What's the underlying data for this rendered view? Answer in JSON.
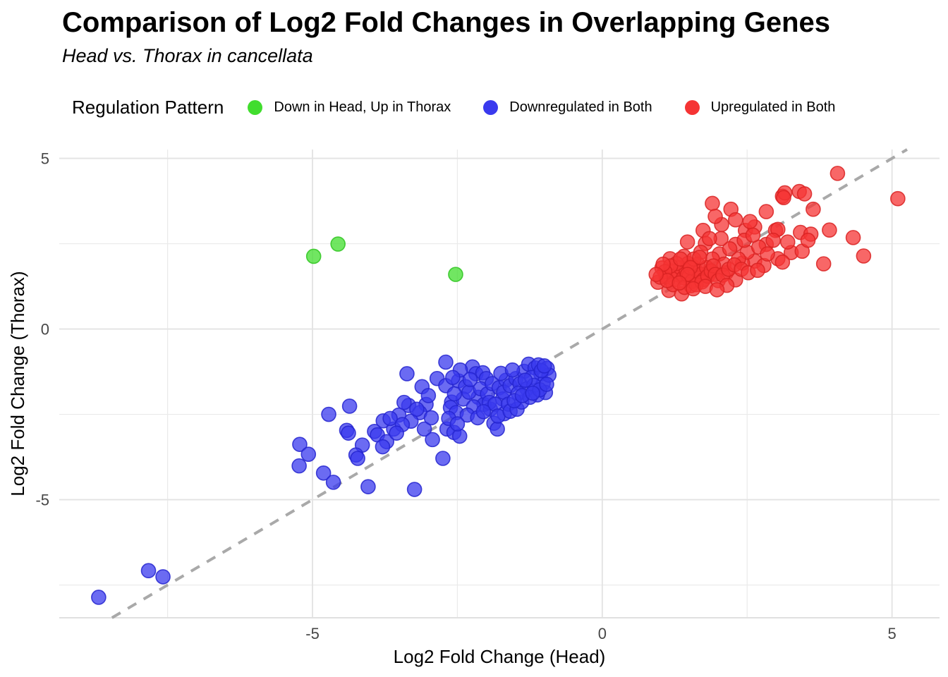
{
  "header": {
    "title": "Comparison of Log2 Fold Changes in Overlapping Genes",
    "subtitle": "Head vs. Thorax in cancellata"
  },
  "legend": {
    "title": "Regulation Pattern",
    "items": [
      {
        "label": "Down in Head, Up in Thorax",
        "color": "#41dd2e"
      },
      {
        "label": "Downregulated in Both",
        "color": "#3a3aee"
      },
      {
        "label": "Upregulated in Both",
        "color": "#f53434"
      }
    ]
  },
  "colors": {
    "grid_major": "#e3e3e3",
    "grid_minor": "#eaeaea",
    "axis_line": "#e0e0e0",
    "tick_label": "#474747",
    "axis_title": "#000000",
    "reference_line": "#a9a9a9"
  },
  "chart_data": {
    "type": "scatter",
    "title": "Comparison of Log2 Fold Changes in Overlapping Genes",
    "subtitle": "Head vs. Thorax in cancellata",
    "xlabel": "Log2 Fold Change (Head)",
    "ylabel": "Log2 Fold Change (Thorax)",
    "xlim": [
      -9.37,
      5.82
    ],
    "ylim": [
      -8.46,
      5.26
    ],
    "xticks": [
      -5,
      0,
      5
    ],
    "yticks": [
      -5,
      0,
      5
    ],
    "xticks_minor": [
      -7.5,
      -2.5,
      2.5
    ],
    "yticks_minor": [
      -7.5,
      -2.5,
      2.5
    ],
    "grid": true,
    "legend_position": "top",
    "reference_line": {
      "style": "dashed",
      "slope": 1,
      "intercept": 0,
      "label": "y = x identity"
    },
    "series": [
      {
        "name": "Down in Head, Up in Thorax",
        "color": "#41dd2e",
        "stroke": "#2ec41e",
        "points": [
          [
            -4.98,
            2.13
          ],
          [
            -4.56,
            2.49
          ],
          [
            -2.53,
            1.6
          ]
        ]
      },
      {
        "name": "Downregulated in Both",
        "color": "#3a3aee",
        "stroke": "#2424cf",
        "points": [
          [
            -8.69,
            -7.86
          ],
          [
            -7.83,
            -7.08
          ],
          [
            -7.58,
            -7.26
          ],
          [
            -5.22,
            -3.38
          ],
          [
            -5.07,
            -3.67
          ],
          [
            -5.23,
            -4.01
          ],
          [
            -4.81,
            -4.22
          ],
          [
            -4.64,
            -4.49
          ],
          [
            -4.72,
            -2.5
          ],
          [
            -4.36,
            -2.26
          ],
          [
            -4.41,
            -2.97
          ],
          [
            -4.38,
            -3.05
          ],
          [
            -4.14,
            -3.4
          ],
          [
            -4.25,
            -3.69
          ],
          [
            -4.22,
            -3.79
          ],
          [
            -4.04,
            -4.62
          ],
          [
            -3.93,
            -3.0
          ],
          [
            -3.88,
            -3.1
          ],
          [
            -3.78,
            -2.69
          ],
          [
            -3.72,
            -3.3
          ],
          [
            -3.79,
            -3.45
          ],
          [
            -3.6,
            -2.93
          ],
          [
            -3.37,
            -1.31
          ],
          [
            -3.34,
            -2.24
          ],
          [
            -3.11,
            -1.69
          ],
          [
            -3.04,
            -2.21
          ],
          [
            -3.15,
            -2.45
          ],
          [
            -3.51,
            -2.52
          ],
          [
            -3.66,
            -2.62
          ],
          [
            -3.24,
            -4.7
          ],
          [
            -3.07,
            -2.93
          ],
          [
            -2.93,
            -3.24
          ],
          [
            -2.85,
            -1.45
          ],
          [
            -3.3,
            -2.7
          ],
          [
            -3.45,
            -2.8
          ],
          [
            -3.2,
            -2.35
          ],
          [
            -2.95,
            -2.6
          ],
          [
            -3.55,
            -3.05
          ],
          [
            -3.0,
            -1.95
          ],
          [
            -3.42,
            -2.15
          ],
          [
            -2.75,
            -3.79
          ],
          [
            -2.7,
            -0.97
          ],
          [
            -2.68,
            -2.93
          ],
          [
            -2.56,
            -3.03
          ],
          [
            -2.46,
            -3.14
          ],
          [
            -2.6,
            -2.14
          ],
          [
            -2.7,
            -1.66
          ],
          [
            -2.48,
            -1.52
          ],
          [
            -2.36,
            -1.69
          ],
          [
            -2.24,
            -1.11
          ],
          [
            -2.18,
            -1.31
          ],
          [
            -2.06,
            -1.28
          ],
          [
            -2.0,
            -1.45
          ],
          [
            -2.14,
            -2.0
          ],
          [
            -2.04,
            -2.21
          ],
          [
            -1.93,
            -2.35
          ],
          [
            -1.87,
            -2.76
          ],
          [
            -1.81,
            -2.93
          ],
          [
            -1.69,
            -2.48
          ],
          [
            -2.62,
            -2.3
          ],
          [
            -2.52,
            -2.45
          ],
          [
            -2.4,
            -2.05
          ],
          [
            -2.3,
            -1.85
          ],
          [
            -2.22,
            -2.28
          ],
          [
            -2.1,
            -1.75
          ],
          [
            -1.98,
            -1.9
          ],
          [
            -1.9,
            -1.6
          ],
          [
            -1.78,
            -1.72
          ],
          [
            -1.72,
            -2.05
          ],
          [
            -1.66,
            -1.5
          ],
          [
            -2.55,
            -1.9
          ],
          [
            -2.33,
            -2.52
          ],
          [
            -2.15,
            -2.6
          ],
          [
            -1.95,
            -2.15
          ],
          [
            -1.75,
            -1.3
          ],
          [
            -2.45,
            -1.2
          ],
          [
            -2.28,
            -1.48
          ],
          [
            -2.65,
            -2.62
          ],
          [
            -1.85,
            -2.2
          ],
          [
            -2.05,
            -2.42
          ],
          [
            -1.7,
            -1.85
          ],
          [
            -2.5,
            -2.78
          ],
          [
            -1.62,
            -2.2
          ],
          [
            -1.8,
            -2.55
          ],
          [
            -2.58,
            -1.42
          ],
          [
            -1.59,
            -1.66
          ],
          [
            -1.49,
            -1.45
          ],
          [
            -1.35,
            -1.24
          ],
          [
            -1.27,
            -1.03
          ],
          [
            -1.16,
            -1.14
          ],
          [
            -1.06,
            -1.31
          ],
          [
            -1.02,
            -1.59
          ],
          [
            -0.98,
            -1.86
          ],
          [
            -1.12,
            -1.93
          ],
          [
            -1.59,
            -2.41
          ],
          [
            -1.47,
            -2.35
          ],
          [
            -1.39,
            -2.14
          ],
          [
            -1.55,
            -1.2
          ],
          [
            -1.42,
            -1.6
          ],
          [
            -1.3,
            -1.75
          ],
          [
            -1.22,
            -1.42
          ],
          [
            -1.1,
            -1.05
          ],
          [
            -0.95,
            -1.15
          ],
          [
            -0.92,
            -1.35
          ],
          [
            -1.05,
            -1.22
          ],
          [
            -1.18,
            -1.65
          ],
          [
            -1.33,
            -1.5
          ],
          [
            -1.45,
            -1.88
          ],
          [
            -1.25,
            -2.0
          ],
          [
            -1.08,
            -1.78
          ],
          [
            -0.96,
            -1.62
          ],
          [
            -1.52,
            -2.1
          ],
          [
            -1.38,
            -1.95
          ],
          [
            -1.2,
            -1.88
          ],
          [
            -1.0,
            -1.08
          ]
        ]
      },
      {
        "name": "Upregulated in Both",
        "color": "#f53434",
        "stroke": "#d92222",
        "points": [
          [
            1.9,
            3.68
          ],
          [
            2.22,
            3.51
          ],
          [
            2.83,
            3.44
          ],
          [
            3.11,
            3.89
          ],
          [
            3.15,
            3.99
          ],
          [
            4.06,
            4.56
          ],
          [
            3.4,
            4.03
          ],
          [
            3.49,
            3.96
          ],
          [
            3.13,
            3.85
          ],
          [
            3.64,
            3.51
          ],
          [
            5.1,
            3.82
          ],
          [
            2.06,
            3.06
          ],
          [
            1.74,
            2.89
          ],
          [
            2.47,
            2.89
          ],
          [
            2.63,
            2.99
          ],
          [
            2.99,
            2.89
          ],
          [
            3.03,
            2.92
          ],
          [
            3.42,
            2.83
          ],
          [
            3.6,
            2.78
          ],
          [
            3.92,
            2.9
          ],
          [
            4.33,
            2.68
          ],
          [
            2.3,
            3.2
          ],
          [
            2.55,
            3.15
          ],
          [
            1.95,
            3.3
          ],
          [
            1.47,
            2.55
          ],
          [
            1.78,
            2.51
          ],
          [
            2.3,
            2.48
          ],
          [
            2.02,
            2.2
          ],
          [
            1.41,
            2.13
          ],
          [
            1.17,
            2.06
          ],
          [
            2.83,
            2.48
          ],
          [
            2.63,
            1.99
          ],
          [
            2.42,
            1.93
          ],
          [
            2.79,
            1.86
          ],
          [
            3.03,
            2.06
          ],
          [
            3.26,
            2.24
          ],
          [
            3.45,
            2.28
          ],
          [
            4.51,
            2.14
          ],
          [
            2.14,
            1.65
          ],
          [
            1.86,
            1.72
          ],
          [
            1.63,
            1.58
          ],
          [
            2.3,
            1.44
          ],
          [
            3.11,
            1.96
          ],
          [
            3.82,
            1.91
          ],
          [
            2.2,
            2.35
          ],
          [
            2.5,
            2.25
          ],
          [
            2.7,
            2.4
          ],
          [
            1.9,
            2.05
          ],
          [
            2.1,
            1.9
          ],
          [
            1.55,
            1.85
          ],
          [
            1.7,
            2.25
          ],
          [
            2.45,
            2.6
          ],
          [
            2.85,
            2.2
          ],
          [
            2.95,
            2.6
          ],
          [
            3.2,
            2.55
          ],
          [
            3.55,
            2.6
          ],
          [
            2.6,
            2.75
          ],
          [
            2.35,
            2.05
          ],
          [
            2.05,
            2.65
          ],
          [
            1.85,
            2.65
          ],
          [
            1.03,
            1.79
          ],
          [
            0.96,
            1.37
          ],
          [
            1.15,
            1.13
          ],
          [
            1.37,
            1.03
          ],
          [
            1.53,
            1.27
          ],
          [
            1.1,
            1.55
          ],
          [
            1.2,
            1.7
          ],
          [
            1.25,
            1.45
          ],
          [
            1.3,
            1.6
          ],
          [
            1.35,
            1.8
          ],
          [
            1.4,
            1.5
          ],
          [
            1.45,
            1.7
          ],
          [
            1.5,
            1.55
          ],
          [
            1.55,
            1.4
          ],
          [
            1.6,
            1.75
          ],
          [
            1.65,
            1.9
          ],
          [
            1.7,
            1.6
          ],
          [
            1.75,
            1.45
          ],
          [
            1.8,
            1.8
          ],
          [
            1.48,
            1.92
          ],
          [
            1.58,
            2.05
          ],
          [
            1.68,
            2.1
          ],
          [
            1.28,
            1.92
          ],
          [
            1.18,
            1.85
          ],
          [
            1.08,
            1.68
          ],
          [
            1.0,
            1.52
          ],
          [
            1.22,
            1.3
          ],
          [
            1.42,
            1.22
          ],
          [
            1.62,
            1.3
          ],
          [
            1.72,
            1.38
          ],
          [
            1.82,
            1.55
          ],
          [
            1.88,
            1.7
          ],
          [
            1.92,
            1.85
          ],
          [
            1.95,
            1.6
          ],
          [
            1.35,
            2.05
          ],
          [
            1.52,
            1.8
          ],
          [
            1.12,
            1.42
          ],
          [
            1.05,
            1.9
          ],
          [
            0.93,
            1.6
          ],
          [
            1.47,
            1.6
          ],
          [
            1.33,
            1.35
          ],
          [
            1.57,
            1.18
          ],
          [
            1.78,
            1.25
          ],
          [
            2.0,
            1.42
          ],
          [
            2.08,
            1.58
          ],
          [
            2.18,
            1.75
          ],
          [
            2.28,
            1.88
          ],
          [
            2.4,
            1.75
          ],
          [
            2.15,
            1.28
          ],
          [
            1.98,
            1.15
          ],
          [
            2.52,
            1.65
          ],
          [
            2.68,
            1.72
          ]
        ]
      }
    ]
  }
}
